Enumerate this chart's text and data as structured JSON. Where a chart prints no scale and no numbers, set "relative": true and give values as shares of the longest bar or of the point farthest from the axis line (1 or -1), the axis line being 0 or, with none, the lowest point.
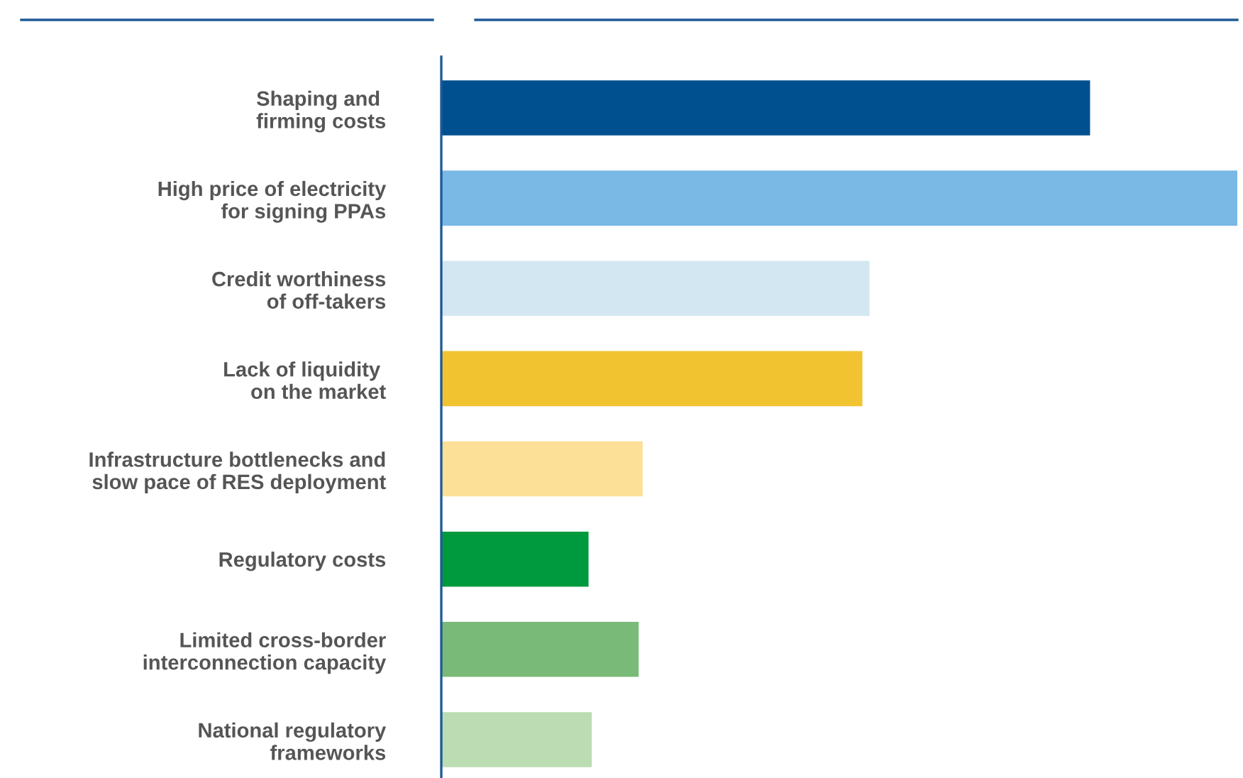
{
  "chart_data": {
    "type": "bar",
    "orientation": "horizontal",
    "relative": true,
    "categories": [
      "Shaping and \nfirming costs",
      "High price of electricity\nfor signing PPAs",
      "Credit worthiness\nof off-takers",
      "Lack of liquidity \non the market",
      "Infrastructure bottlenecks and\nslow pace of RES deployment",
      "Regulatory costs",
      "Limited cross-border\ninterconnection capacity",
      "National regulatory\nframeworks"
    ],
    "values": [
      0.815,
      1,
      0.538,
      0.529,
      0.253,
      0.185,
      0.248,
      0.189
    ],
    "colors": [
      "#00508f",
      "#7ab8e6",
      "#d3e7f2",
      "#f2c330",
      "#fde098",
      "#009a3e",
      "#7aba78",
      "#bcdcb3"
    ],
    "grid": false,
    "legend": false
  }
}
